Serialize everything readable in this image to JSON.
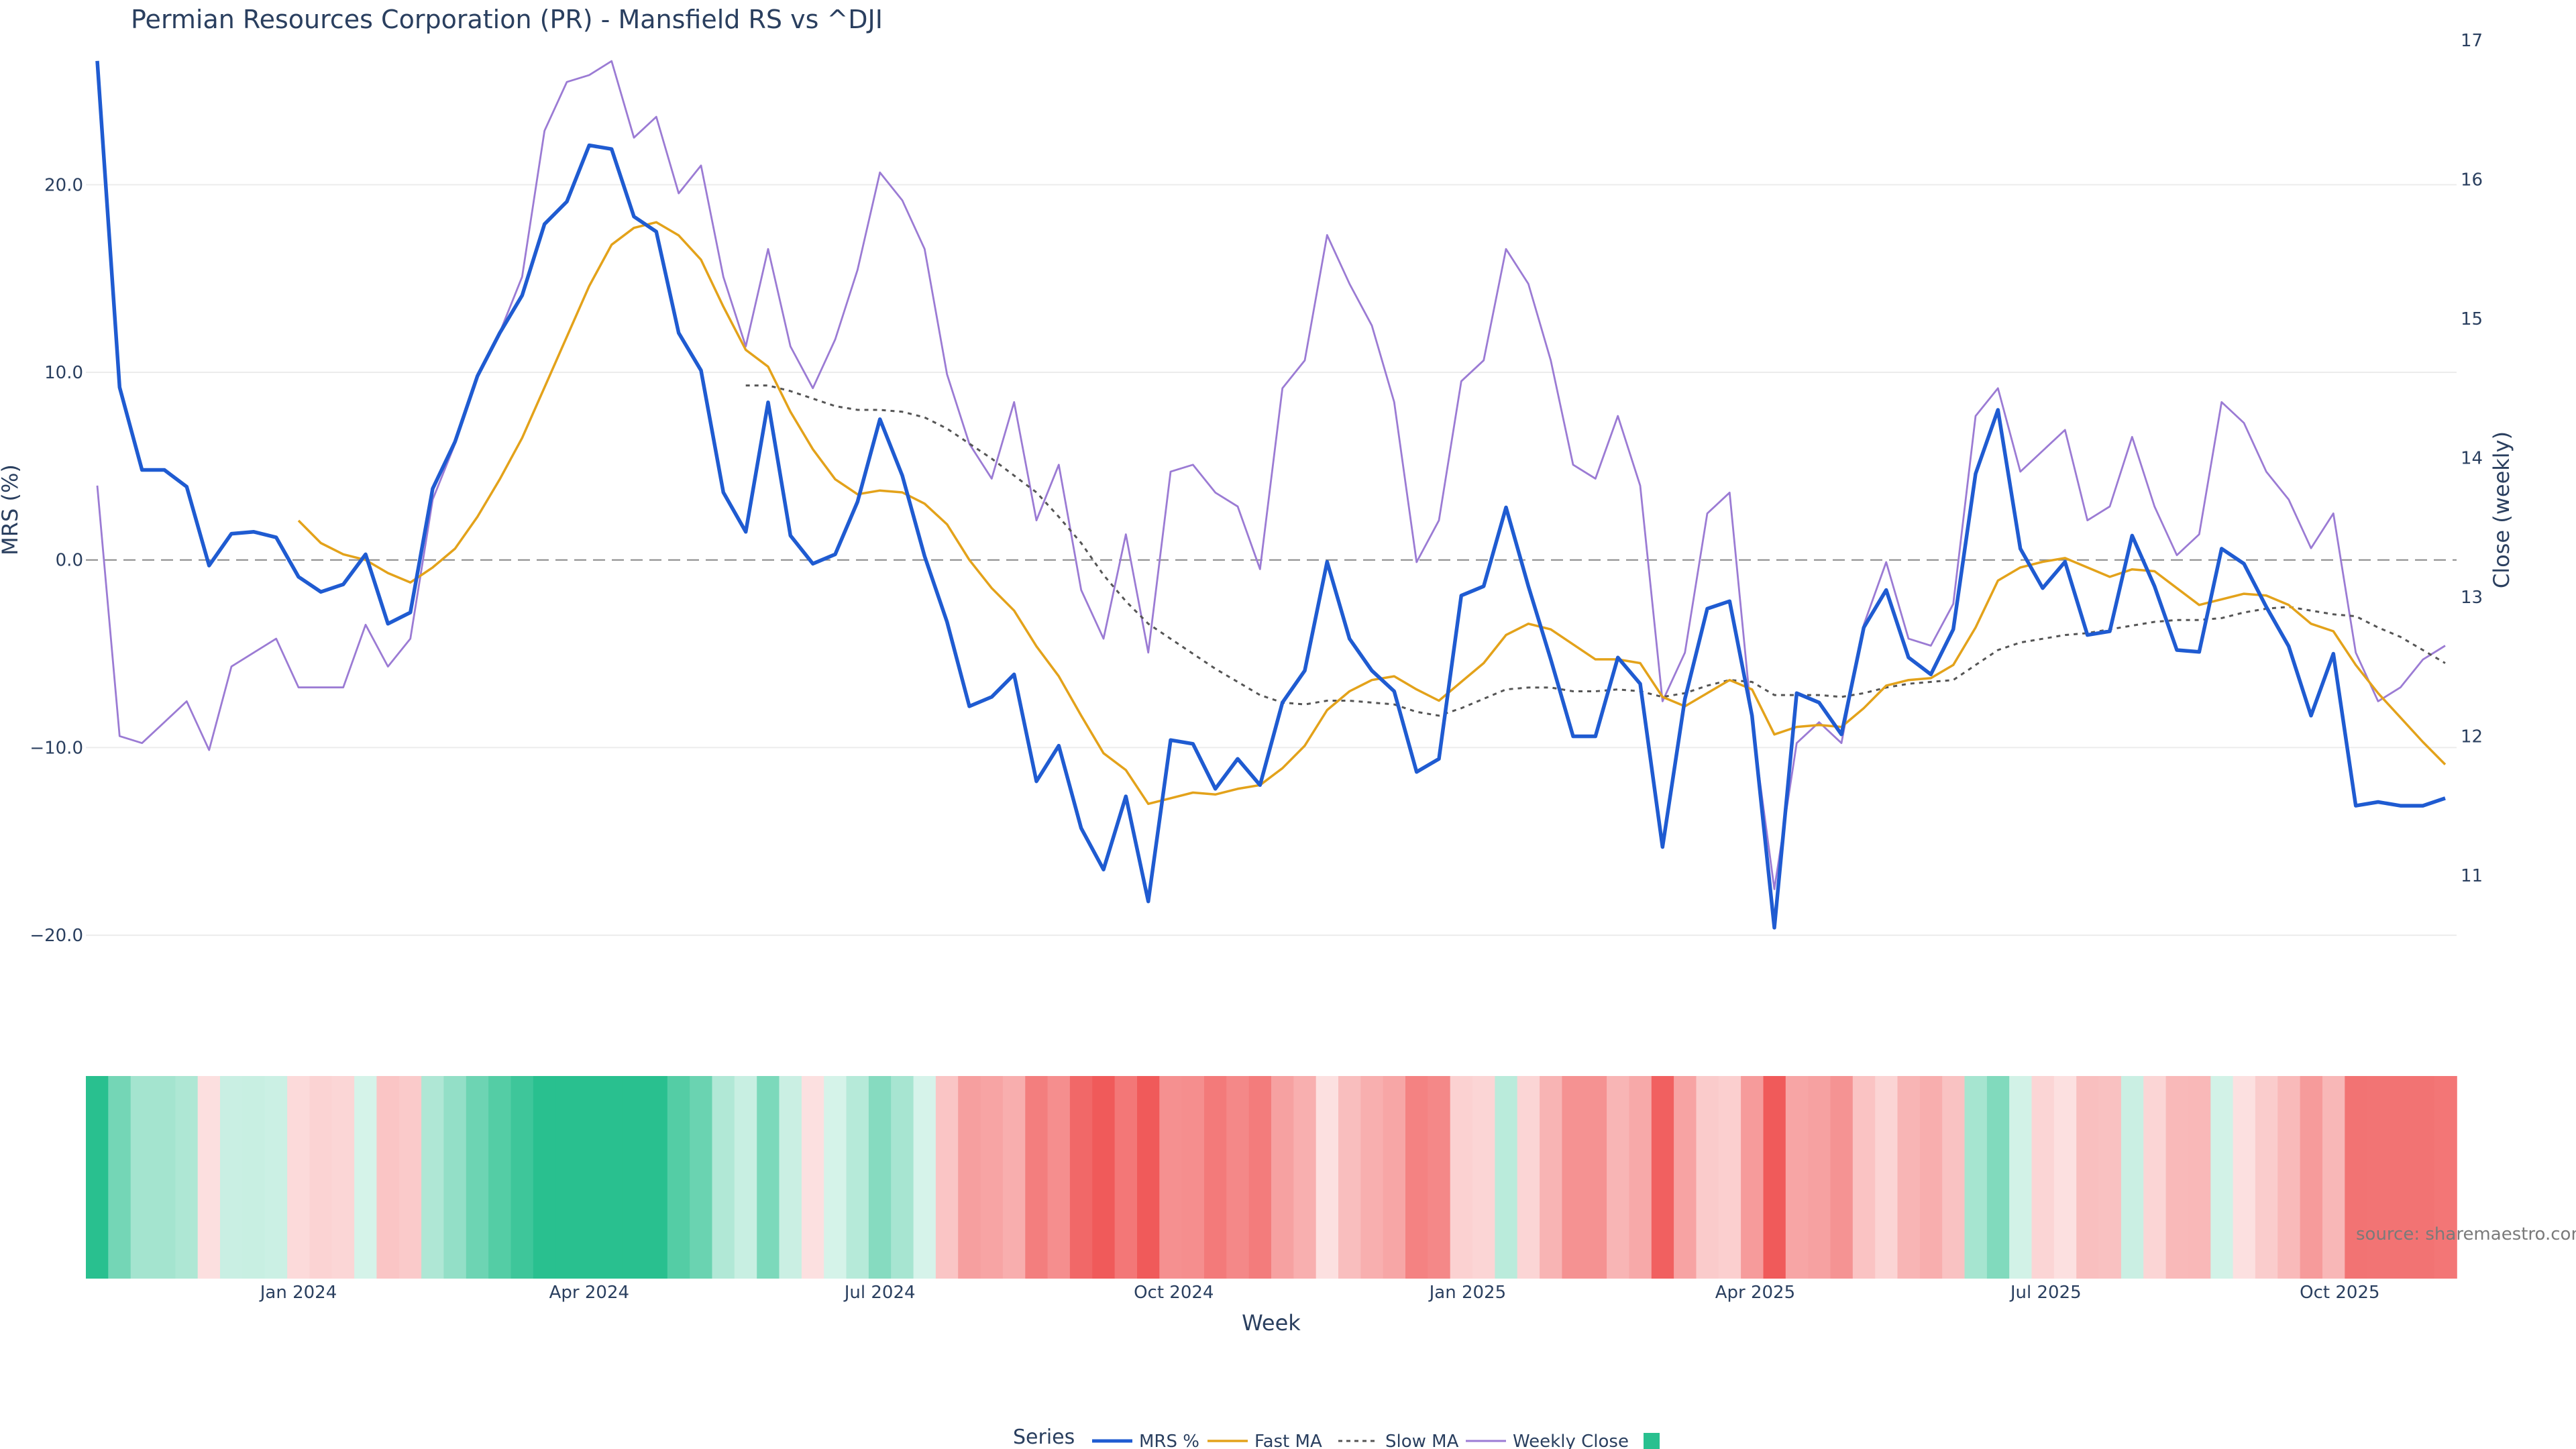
{
  "title": "Permian Resources Corporation (PR) - Mansfield RS vs ^DJI",
  "source_text": "source: sharemaestro.com",
  "colors": {
    "mrs": "#1f5bd1",
    "fast_ma": "#e3a21a",
    "slow_ma": "#555555",
    "weekly_close": "#9b7bd4",
    "positive": "#29c08f",
    "negative": "#f05a5a",
    "grid": "#ececec",
    "zero_line": "#888888"
  },
  "legend": {
    "title": "Series",
    "items": [
      "MRS %",
      "Fast MA",
      "Slow MA",
      "Weekly Close",
      ""
    ]
  },
  "chart_data": {
    "type": "line",
    "x": [
      "2023-10-30",
      "2023-11-06",
      "2023-11-13",
      "2023-11-20",
      "2023-11-27",
      "2023-12-04",
      "2023-12-11",
      "2023-12-18",
      "2023-12-25",
      "2024-01-01",
      "2024-01-08",
      "2024-01-15",
      "2024-01-22",
      "2024-01-29",
      "2024-02-05",
      "2024-02-12",
      "2024-02-19",
      "2024-02-26",
      "2024-03-04",
      "2024-03-11",
      "2024-03-18",
      "2024-03-25",
      "2024-04-01",
      "2024-04-08",
      "2024-04-15",
      "2024-04-22",
      "2024-04-29",
      "2024-05-06",
      "2024-05-13",
      "2024-05-20",
      "2024-05-27",
      "2024-06-03",
      "2024-06-10",
      "2024-06-17",
      "2024-06-24",
      "2024-07-01",
      "2024-07-08",
      "2024-07-15",
      "2024-07-22",
      "2024-07-29",
      "2024-08-05",
      "2024-08-12",
      "2024-08-19",
      "2024-08-26",
      "2024-09-02",
      "2024-09-09",
      "2024-09-16",
      "2024-09-23",
      "2024-09-30",
      "2024-10-07",
      "2024-10-14",
      "2024-10-21",
      "2024-10-28",
      "2024-11-04",
      "2024-11-11",
      "2024-11-18",
      "2024-11-25",
      "2024-12-02",
      "2024-12-09",
      "2024-12-16",
      "2024-12-23",
      "2024-12-30",
      "2025-01-06",
      "2025-01-13",
      "2025-01-20",
      "2025-01-27",
      "2025-02-03",
      "2025-02-10",
      "2025-02-17",
      "2025-02-24",
      "2025-03-03",
      "2025-03-10",
      "2025-03-17",
      "2025-03-24",
      "2025-03-31",
      "2025-04-07",
      "2025-04-14",
      "2025-04-21",
      "2025-04-28",
      "2025-05-05",
      "2025-05-12",
      "2025-05-19",
      "2025-05-26",
      "2025-06-02",
      "2025-06-09",
      "2025-06-16",
      "2025-06-23",
      "2025-06-30",
      "2025-07-07",
      "2025-07-14",
      "2025-07-21",
      "2025-07-28",
      "2025-08-04",
      "2025-08-11",
      "2025-08-18",
      "2025-08-25",
      "2025-09-01",
      "2025-09-08",
      "2025-09-15",
      "2025-09-22",
      "2025-09-29",
      "2025-10-06",
      "2025-10-13",
      "2025-10-20",
      "2025-10-27",
      "2025-11-03"
    ],
    "xlabel": "Week",
    "ylabel": "MRS (%)",
    "y2label": "Close (weekly)",
    "ylim": [
      -22.0,
      27.7
    ],
    "y2lim": [
      10.3,
      17.0
    ],
    "yticks": [
      "20.0",
      "10.0",
      "0.0",
      "−10.0",
      "−20.0"
    ],
    "ytick_values": [
      20,
      10,
      0,
      -10,
      -20
    ],
    "y2ticks": [
      "17",
      "16",
      "15",
      "14",
      "13",
      "12",
      "11"
    ],
    "y2tick_values": [
      17,
      16,
      15,
      14,
      13,
      12,
      11
    ],
    "xticks": [
      "Jan 2024",
      "Apr 2024",
      "Jul 2024",
      "Oct 2024",
      "Jan 2025",
      "Apr 2025",
      "Jul 2025",
      "Oct 2025"
    ],
    "xtick_values": [
      "2024-01-01",
      "2024-04-01",
      "2024-07-01",
      "2024-10-01",
      "2025-01-01",
      "2025-04-01",
      "2025-07-01",
      "2025-10-01"
    ],
    "series": [
      {
        "name": "MRS %",
        "values": [
          26.6,
          9.2,
          4.8,
          4.8,
          3.9,
          -0.3,
          1.4,
          1.5,
          1.2,
          -0.9,
          -1.7,
          -1.3,
          0.3,
          -3.4,
          -2.8,
          3.8,
          6.3,
          9.8,
          12.1,
          14.1,
          17.9,
          19.1,
          22.1,
          21.9,
          18.3,
          17.5,
          12.1,
          10.1,
          3.6,
          1.5,
          8.4,
          1.3,
          -0.2,
          0.3,
          3.1,
          7.5,
          4.5,
          0.2,
          -3.3,
          -7.8,
          -7.3,
          -6.1,
          -11.8,
          -9.9,
          -14.3,
          -16.5,
          -12.6,
          -18.2,
          -9.6,
          -9.8,
          -12.2,
          -10.6,
          -12.0,
          -7.6,
          -5.9,
          -0.1,
          -4.2,
          -5.9,
          -7.0,
          -11.3,
          -10.6,
          -1.9,
          -1.4,
          2.8,
          -1.4,
          -5.3,
          -9.4,
          -9.4,
          -5.2,
          -6.6,
          -15.3,
          -7.4,
          -2.6,
          -2.2,
          -8.3,
          -19.6,
          -7.1,
          -7.6,
          -9.3,
          -3.6,
          -1.6,
          -5.2,
          -6.1,
          -3.7,
          4.6,
          8.0,
          0.6,
          -1.5,
          -0.1,
          -4.0,
          -3.8,
          1.3,
          -1.4,
          -4.8,
          -4.9,
          0.6,
          -0.2,
          -2.5,
          -4.6,
          -8.3,
          -5.0,
          -13.1,
          -12.9,
          -13.1,
          -13.1,
          -12.7
        ]
      },
      {
        "name": "Fast MA",
        "values": [
          null,
          null,
          null,
          null,
          null,
          null,
          null,
          null,
          null,
          2.1,
          0.9,
          0.3,
          0.0,
          -0.7,
          -1.2,
          -0.4,
          0.6,
          2.3,
          4.3,
          6.5,
          9.2,
          11.9,
          14.6,
          16.8,
          17.7,
          18.0,
          17.3,
          16.0,
          13.5,
          11.2,
          10.3,
          7.9,
          5.9,
          4.3,
          3.5,
          3.7,
          3.6,
          3.0,
          1.9,
          0.0,
          -1.5,
          -2.7,
          -4.6,
          -6.2,
          -8.3,
          -10.3,
          -11.2,
          -13.0,
          -12.7,
          -12.4,
          -12.5,
          -12.2,
          -12.0,
          -11.1,
          -9.9,
          -8.0,
          -7.0,
          -6.4,
          -6.2,
          -6.9,
          -7.5,
          -6.5,
          -5.5,
          -4.0,
          -3.4,
          -3.7,
          -4.5,
          -5.3,
          -5.3,
          -5.5,
          -7.3,
          -7.8,
          -7.1,
          -6.4,
          -6.9,
          -9.3,
          -8.9,
          -8.8,
          -8.9,
          -7.9,
          -6.7,
          -6.4,
          -6.3,
          -5.6,
          -3.6,
          -1.1,
          -0.4,
          -0.1,
          0.1,
          -0.4,
          -0.9,
          -0.5,
          -0.6,
          -1.5,
          -2.4,
          -2.1,
          -1.8,
          -1.9,
          -2.4,
          -3.4,
          -3.8,
          -5.6,
          -7.1,
          -8.4,
          -9.7,
          -10.9
        ]
      },
      {
        "name": "Slow MA",
        "values": [
          null,
          null,
          null,
          null,
          null,
          null,
          null,
          null,
          null,
          null,
          null,
          null,
          null,
          null,
          null,
          null,
          null,
          null,
          null,
          null,
          null,
          null,
          null,
          null,
          null,
          null,
          null,
          null,
          null,
          9.3,
          9.3,
          9.0,
          8.6,
          8.2,
          8.0,
          8.0,
          7.9,
          7.6,
          7.0,
          6.2,
          5.4,
          4.5,
          3.6,
          2.3,
          0.9,
          -0.8,
          -2.2,
          -3.4,
          -4.2,
          -5.0,
          -5.8,
          -6.5,
          -7.2,
          -7.6,
          -7.7,
          -7.5,
          -7.5,
          -7.6,
          -7.7,
          -8.1,
          -8.3,
          -7.9,
          -7.4,
          -6.9,
          -6.8,
          -6.8,
          -7.0,
          -7.0,
          -6.9,
          -7.0,
          -7.3,
          -7.1,
          -6.7,
          -6.4,
          -6.5,
          -7.2,
          -7.2,
          -7.2,
          -7.3,
          -7.1,
          -6.8,
          -6.6,
          -6.5,
          -6.4,
          -5.6,
          -4.8,
          -4.4,
          -4.2,
          -4.0,
          -3.9,
          -3.7,
          -3.5,
          -3.3,
          -3.2,
          -3.2,
          -3.1,
          -2.8,
          -2.6,
          -2.5,
          -2.7,
          -2.9,
          -3.0,
          -3.6,
          -4.1,
          -4.8,
          -5.5
        ]
      },
      {
        "name": "Weekly Close",
        "axis": "y2",
        "values": [
          13.8,
          12.0,
          11.95,
          12.1,
          12.25,
          11.9,
          12.5,
          12.6,
          12.7,
          12.35,
          12.35,
          12.35,
          12.8,
          12.5,
          12.7,
          13.7,
          14.1,
          14.6,
          14.9,
          15.3,
          16.35,
          16.7,
          16.75,
          16.85,
          16.3,
          16.45,
          15.9,
          16.1,
          15.3,
          14.8,
          15.5,
          14.8,
          14.5,
          14.85,
          15.35,
          16.05,
          15.85,
          15.5,
          14.6,
          14.1,
          13.85,
          14.4,
          13.55,
          13.95,
          13.05,
          12.7,
          13.45,
          12.6,
          13.9,
          13.95,
          13.75,
          13.65,
          13.2,
          14.5,
          14.7,
          15.6,
          15.25,
          14.95,
          14.4,
          13.25,
          13.55,
          14.55,
          14.7,
          15.5,
          15.25,
          14.7,
          13.95,
          13.85,
          14.3,
          13.8,
          12.25,
          12.6,
          13.6,
          13.75,
          12.1,
          10.9,
          11.95,
          12.1,
          11.95,
          12.8,
          13.25,
          12.7,
          12.65,
          12.95,
          14.3,
          14.5,
          13.9,
          14.05,
          14.2,
          13.55,
          13.65,
          14.15,
          13.65,
          13.3,
          13.45,
          14.4,
          14.25,
          13.9,
          13.7,
          13.35,
          13.6,
          12.6,
          12.25,
          12.35,
          12.55,
          12.65
        ]
      }
    ],
    "heatmap_note": "Bottom strip: one cell per week, green where MRS % is positive and red where it is negative, shade intensity follows magnitude."
  }
}
